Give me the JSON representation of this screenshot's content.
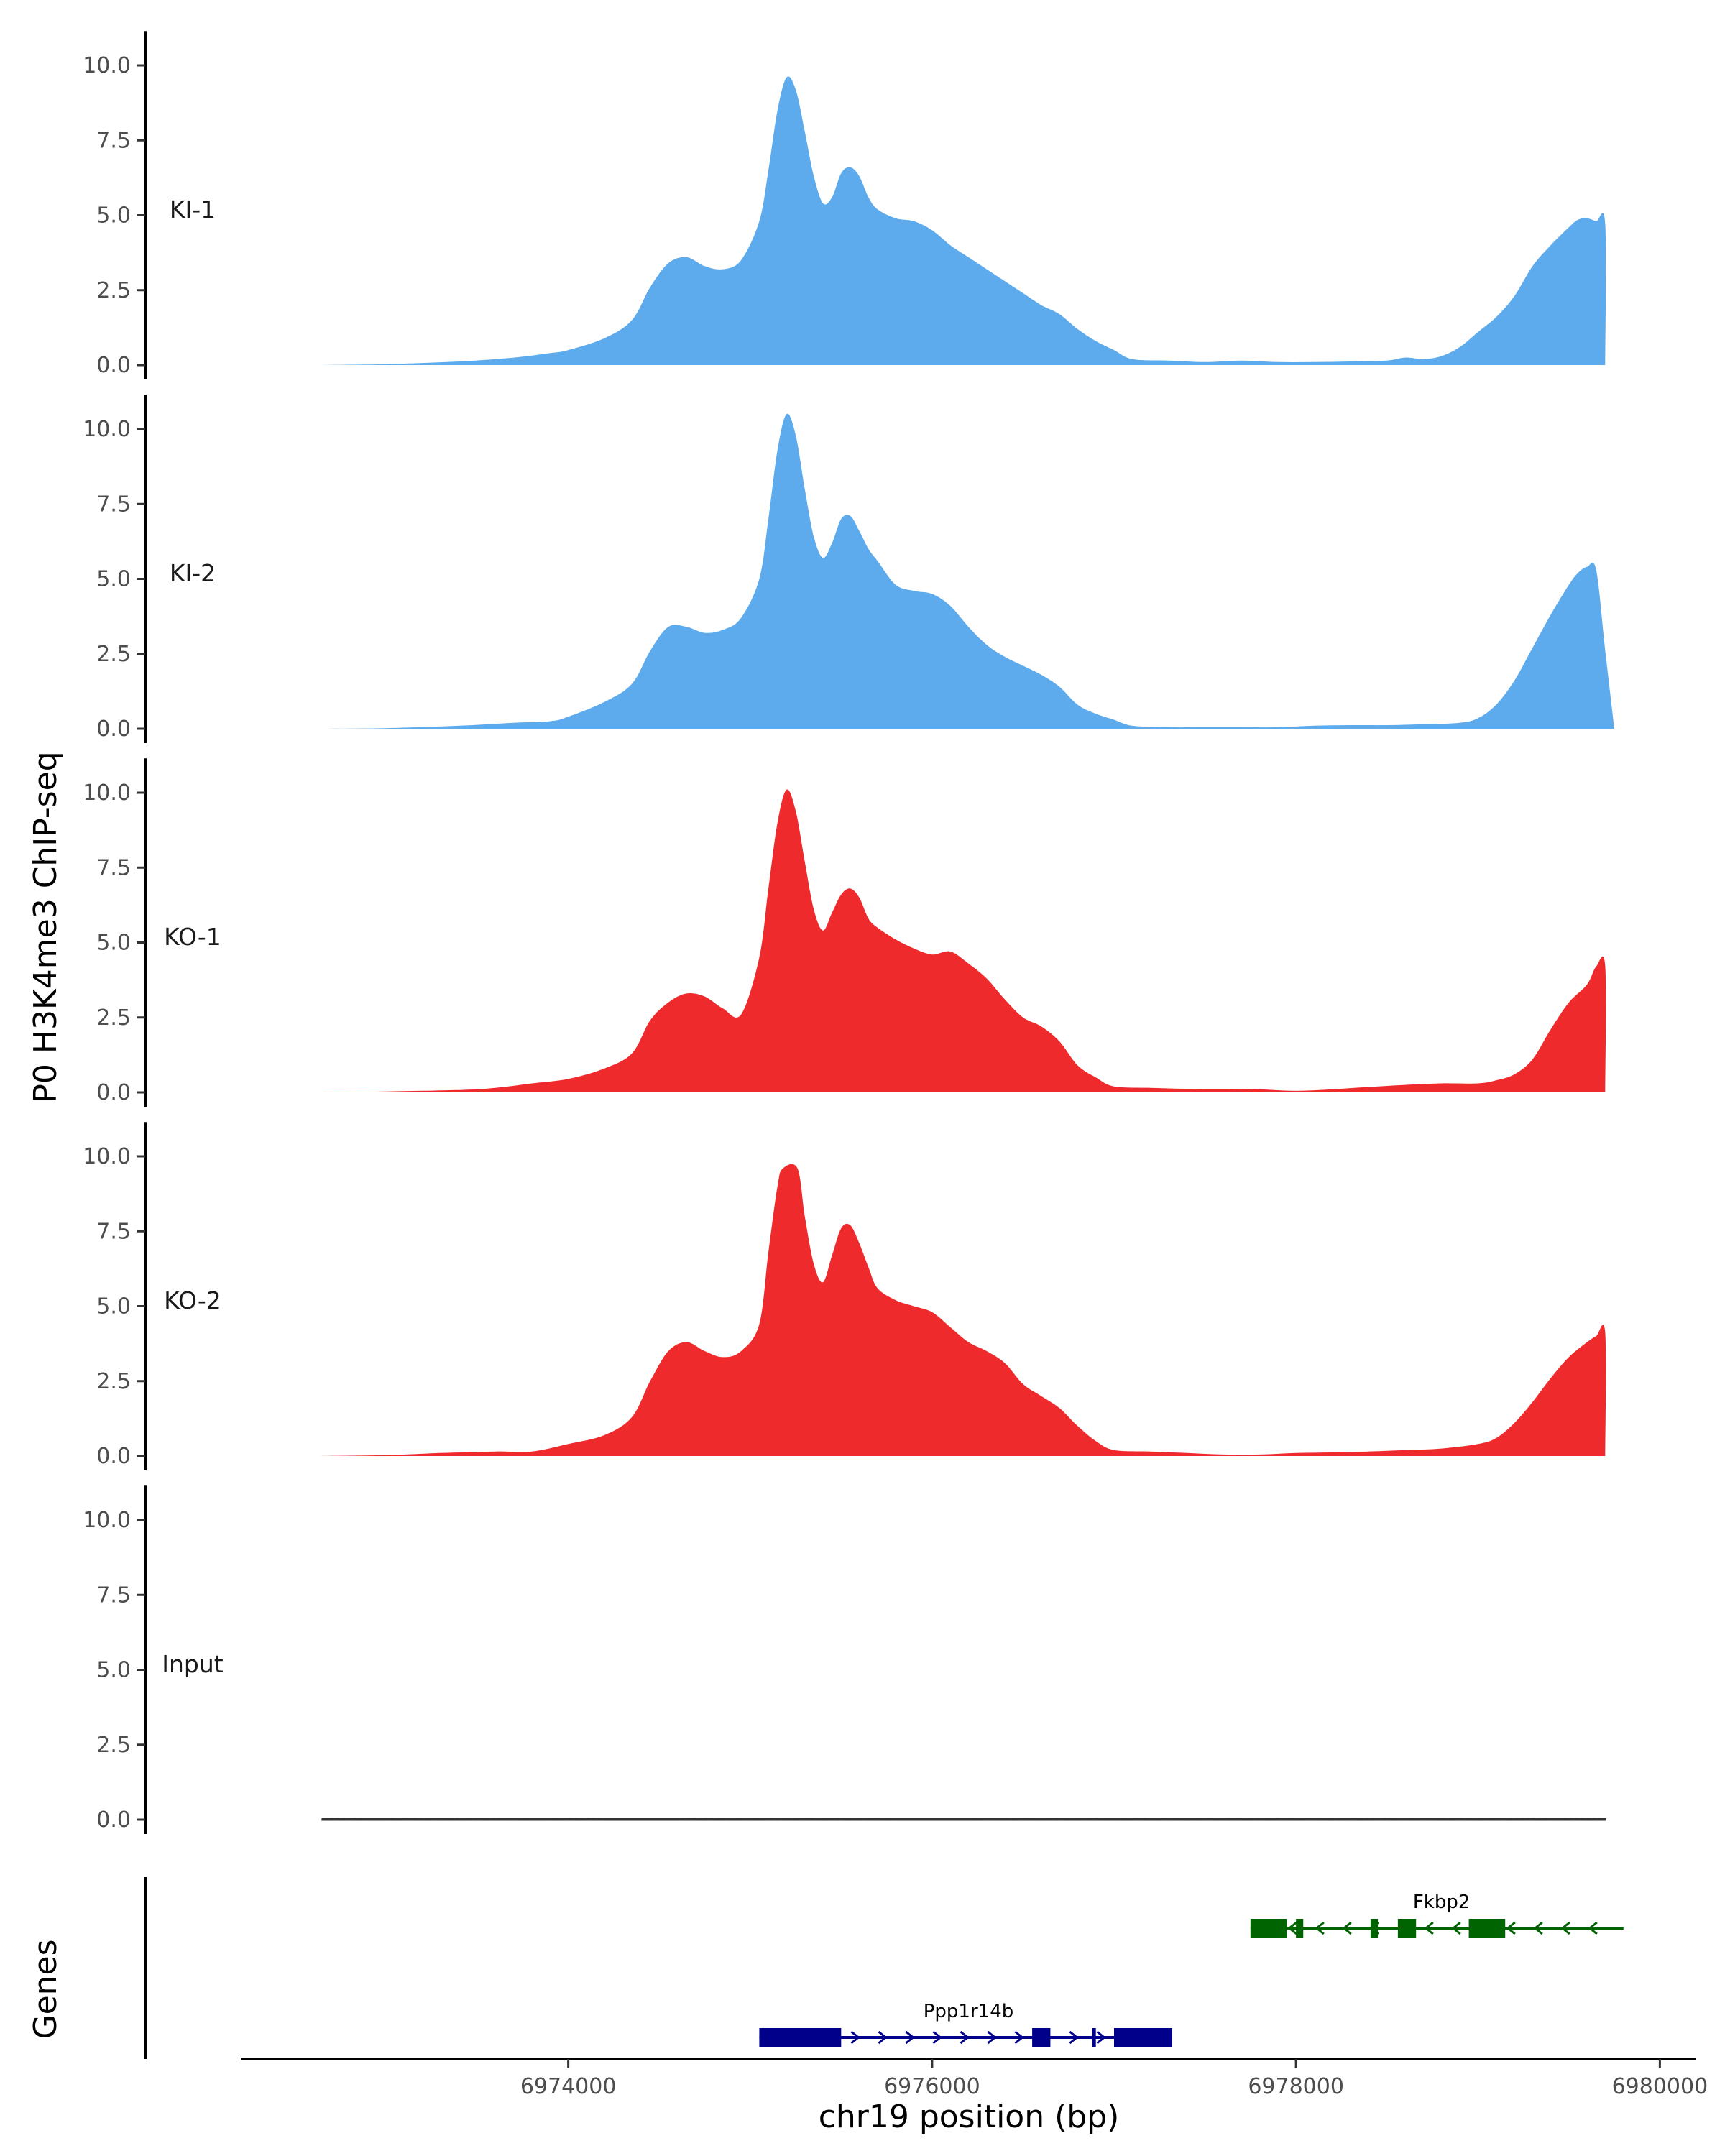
{
  "chart_data": {
    "type": "area",
    "ylabel": "P0 H3K4me3 ChIP-seq",
    "xlabel": "chr19 position (bp)",
    "genes_label": "Genes",
    "ylim": [
      0,
      11
    ],
    "yticks": [
      0,
      2.5,
      5,
      7.5,
      10
    ],
    "ytick_labels": [
      "0.0",
      "2.5",
      "5.0",
      "7.5",
      "10.0"
    ],
    "xlim": [
      6972200,
      6980200
    ],
    "xticks": [
      6974000,
      6976000,
      6978000,
      6980000
    ],
    "xtick_labels": [
      "6974000",
      "6976000",
      "6978000",
      "6980000"
    ],
    "grid": false,
    "colors": {
      "KI": "#5dabec",
      "KO": "#ee2a2d",
      "Input": "#333333",
      "Ppp1r14b": "#00008b",
      "Fkbp2": "#006400"
    },
    "tracks": [
      {
        "name": "KI-1",
        "color": "#5dabec",
        "x": [
          6972650,
          6973000,
          6973400,
          6973700,
          6973900,
          6974000,
          6974200,
          6974350,
          6974450,
          6974550,
          6974650,
          6974750,
          6974850,
          6974950,
          6975050,
          6975100,
          6975150,
          6975200,
          6975250,
          6975300,
          6975350,
          6975400,
          6975450,
          6975500,
          6975550,
          6975600,
          6975650,
          6975700,
          6975800,
          6975900,
          6976000,
          6976100,
          6976200,
          6976300,
          6976400,
          6976500,
          6976600,
          6976700,
          6976800,
          6976900,
          6977000,
          6977100,
          6977300,
          6977500,
          6977700,
          6977900,
          6978100,
          6978300,
          6978500,
          6978600,
          6978700,
          6978800,
          6978900,
          6979000,
          6979100,
          6979200,
          6979300,
          6979400,
          6979500,
          6979550,
          6979600,
          6979650,
          6979700,
          6979700
        ],
        "y": [
          0,
          0.03,
          0.12,
          0.25,
          0.4,
          0.5,
          0.9,
          1.5,
          2.6,
          3.4,
          3.6,
          3.3,
          3.2,
          3.5,
          4.8,
          6.5,
          8.5,
          9.6,
          9.2,
          7.8,
          6.3,
          5.4,
          5.6,
          6.4,
          6.6,
          6.3,
          5.6,
          5.2,
          4.9,
          4.8,
          4.5,
          4.0,
          3.6,
          3.2,
          2.8,
          2.4,
          2.0,
          1.7,
          1.2,
          0.8,
          0.5,
          0.2,
          0.15,
          0.1,
          0.15,
          0.1,
          0.1,
          0.12,
          0.15,
          0.25,
          0.2,
          0.3,
          0.6,
          1.1,
          1.6,
          2.3,
          3.3,
          4.0,
          4.6,
          4.85,
          4.9,
          4.8,
          4.7,
          0
        ]
      },
      {
        "name": "KI-2",
        "color": "#5dabec",
        "x": [
          6972650,
          6973000,
          6973400,
          6973700,
          6973900,
          6974000,
          6974200,
          6974350,
          6974450,
          6974550,
          6974650,
          6974750,
          6974850,
          6974950,
          6975050,
          6975100,
          6975150,
          6975200,
          6975250,
          6975300,
          6975350,
          6975400,
          6975450,
          6975500,
          6975550,
          6975600,
          6975650,
          6975700,
          6975800,
          6975900,
          6976000,
          6976100,
          6976200,
          6976300,
          6976400,
          6976500,
          6976600,
          6976700,
          6976800,
          6976900,
          6977000,
          6977100,
          6977300,
          6977500,
          6977700,
          6977900,
          6978100,
          6978300,
          6978500,
          6978700,
          6978900,
          6979000,
          6979100,
          6979200,
          6979300,
          6979400,
          6979500,
          6979550,
          6979600,
          6979650,
          6979700,
          6979750
        ],
        "y": [
          0,
          0.02,
          0.1,
          0.2,
          0.25,
          0.4,
          0.9,
          1.5,
          2.6,
          3.4,
          3.4,
          3.2,
          3.3,
          3.7,
          5.0,
          7.0,
          9.3,
          10.5,
          9.8,
          8.0,
          6.4,
          5.7,
          6.2,
          7.0,
          7.1,
          6.6,
          6.0,
          5.6,
          4.8,
          4.6,
          4.5,
          4.1,
          3.4,
          2.8,
          2.4,
          2.1,
          1.8,
          1.4,
          0.8,
          0.5,
          0.3,
          0.1,
          0.05,
          0.05,
          0.05,
          0.05,
          0.1,
          0.12,
          0.12,
          0.15,
          0.2,
          0.35,
          0.8,
          1.6,
          2.7,
          3.8,
          4.8,
          5.2,
          5.4,
          5.3,
          2.6,
          0
        ]
      },
      {
        "name": "KO-1",
        "color": "#ee2a2d",
        "x": [
          6972650,
          6973000,
          6973400,
          6973600,
          6973800,
          6974000,
          6974200,
          6974350,
          6974450,
          6974550,
          6974650,
          6974750,
          6974850,
          6974950,
          6975050,
          6975100,
          6975150,
          6975200,
          6975250,
          6975300,
          6975350,
          6975400,
          6975450,
          6975500,
          6975550,
          6975600,
          6975650,
          6975700,
          6975800,
          6975900,
          6976000,
          6976100,
          6976200,
          6976300,
          6976400,
          6976500,
          6976600,
          6976700,
          6976800,
          6976900,
          6977000,
          6977200,
          6977400,
          6977600,
          6977800,
          6978000,
          6978200,
          6978400,
          6978600,
          6978800,
          6979000,
          6979100,
          6979200,
          6979300,
          6979400,
          6979500,
          6979600,
          6979650,
          6979700,
          6979700
        ],
        "y": [
          0,
          0.03,
          0.08,
          0.15,
          0.3,
          0.45,
          0.8,
          1.3,
          2.4,
          3.0,
          3.3,
          3.2,
          2.8,
          2.6,
          4.5,
          6.8,
          9.0,
          10.1,
          9.4,
          7.7,
          6.1,
          5.4,
          6.0,
          6.6,
          6.8,
          6.5,
          5.8,
          5.5,
          5.1,
          4.8,
          4.6,
          4.7,
          4.3,
          3.8,
          3.1,
          2.5,
          2.2,
          1.7,
          0.9,
          0.5,
          0.2,
          0.15,
          0.12,
          0.12,
          0.1,
          0.05,
          0.1,
          0.18,
          0.25,
          0.3,
          0.3,
          0.4,
          0.6,
          1.1,
          2.1,
          3.0,
          3.6,
          4.2,
          4.2,
          0
        ]
      },
      {
        "name": "KO-2",
        "color": "#ee2a2d",
        "x": [
          6972600,
          6973000,
          6973300,
          6973600,
          6973800,
          6974000,
          6974200,
          6974350,
          6974450,
          6974550,
          6974650,
          6974750,
          6974850,
          6974950,
          6975050,
          6975100,
          6975150,
          6975180,
          6975260,
          6975300,
          6975350,
          6975400,
          6975450,
          6975500,
          6975550,
          6975600,
          6975650,
          6975700,
          6975800,
          6975900,
          6976000,
          6976100,
          6976200,
          6976300,
          6976400,
          6976500,
          6976600,
          6976700,
          6976800,
          6976900,
          6977000,
          6977200,
          6977400,
          6977600,
          6977800,
          6978000,
          6978200,
          6978400,
          6978600,
          6978800,
          6979000,
          6979100,
          6979200,
          6979300,
          6979400,
          6979500,
          6979600,
          6979650,
          6979700,
          6979700
        ],
        "y": [
          0,
          0.03,
          0.1,
          0.15,
          0.15,
          0.4,
          0.7,
          1.3,
          2.5,
          3.5,
          3.8,
          3.5,
          3.3,
          3.5,
          4.4,
          6.8,
          9.0,
          9.6,
          9.6,
          8.0,
          6.4,
          5.8,
          6.7,
          7.6,
          7.7,
          7.1,
          6.3,
          5.6,
          5.2,
          5.0,
          4.8,
          4.3,
          3.8,
          3.5,
          3.1,
          2.4,
          2.0,
          1.6,
          1.0,
          0.5,
          0.2,
          0.15,
          0.1,
          0.05,
          0.05,
          0.1,
          0.12,
          0.15,
          0.2,
          0.25,
          0.4,
          0.6,
          1.1,
          1.8,
          2.6,
          3.3,
          3.8,
          4.0,
          4.1,
          0
        ]
      },
      {
        "name": "Input",
        "color": "#333333",
        "x": [
          6972650,
          6973000,
          6973400,
          6973800,
          6974200,
          6974600,
          6975000,
          6975400,
          6975800,
          6976200,
          6976600,
          6977000,
          6977400,
          6977800,
          6978200,
          6978600,
          6979000,
          6979400,
          6979700
        ],
        "y": [
          0.02,
          0.03,
          0.02,
          0.03,
          0.02,
          0.02,
          0.03,
          0.02,
          0.03,
          0.03,
          0.02,
          0.03,
          0.02,
          0.03,
          0.02,
          0.03,
          0.02,
          0.03,
          0.02
        ]
      }
    ],
    "genes": [
      {
        "name": "Ppp1r14b",
        "strand": "+",
        "color": "#00008b",
        "row": 1,
        "start": 6975050,
        "end": 6977300,
        "exons": [
          [
            6975050,
            6975500
          ],
          [
            6976550,
            6976650
          ],
          [
            6976880,
            6976900
          ],
          [
            6977000,
            6977320
          ]
        ]
      },
      {
        "name": "Fkbp2",
        "strand": "-",
        "color": "#006400",
        "row": 0,
        "start": 6977750,
        "end": 6979800,
        "exons": [
          [
            6977750,
            6977950
          ],
          [
            6978000,
            6978040
          ],
          [
            6978410,
            6978450
          ],
          [
            6978560,
            6978660
          ],
          [
            6978950,
            6979150
          ]
        ]
      }
    ]
  }
}
